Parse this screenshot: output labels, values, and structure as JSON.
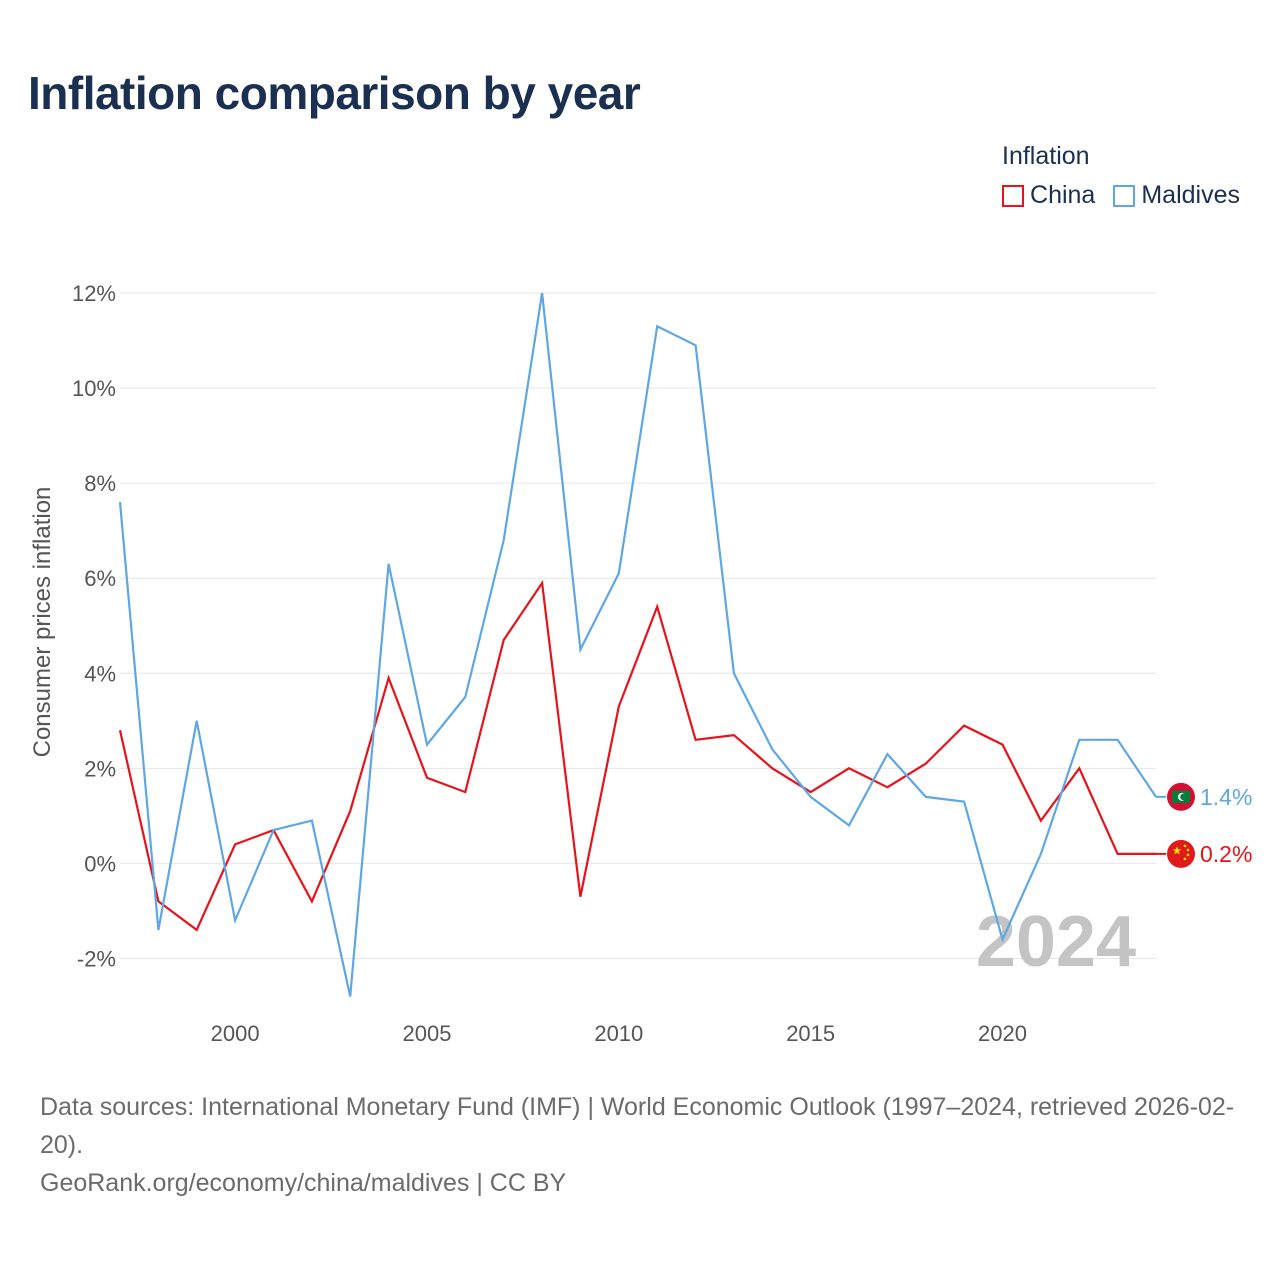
{
  "title": "Inflation comparison by year",
  "legend": {
    "title": "Inflation",
    "items": [
      {
        "label": "China",
        "color": "#e8131a"
      },
      {
        "label": "Maldives",
        "color": "#5fa7e2"
      }
    ]
  },
  "chart_data": {
    "type": "line",
    "ylabel": "Consumer prices inflation",
    "xlabel": "",
    "xlim": [
      1997,
      2024
    ],
    "ylim": [
      -3,
      12
    ],
    "x_ticks": [
      2000,
      2005,
      2010,
      2015,
      2020
    ],
    "y_ticks": [
      -2,
      0,
      2,
      4,
      6,
      8,
      10,
      12
    ],
    "y_tick_labels": [
      "-2%",
      "0%",
      "2%",
      "4%",
      "6%",
      "8%",
      "10%",
      "12%"
    ],
    "x": [
      1997,
      1998,
      1999,
      2000,
      2001,
      2002,
      2003,
      2004,
      2005,
      2006,
      2007,
      2008,
      2009,
      2010,
      2011,
      2012,
      2013,
      2014,
      2015,
      2016,
      2017,
      2018,
      2019,
      2020,
      2021,
      2022,
      2023,
      2024
    ],
    "series": [
      {
        "name": "China",
        "color": "#e8131a",
        "end_label": "0.2%",
        "flag": "china-flag-icon",
        "values": [
          2.8,
          -0.8,
          -1.4,
          0.4,
          0.7,
          -0.8,
          1.1,
          3.9,
          1.8,
          1.5,
          4.7,
          5.9,
          -0.7,
          3.3,
          5.4,
          2.6,
          2.7,
          2.0,
          1.5,
          2.0,
          1.6,
          2.1,
          2.9,
          2.5,
          0.9,
          2.0,
          0.2,
          0.2
        ]
      },
      {
        "name": "Maldives",
        "color": "#5fa7e2",
        "end_label": "1.4%",
        "flag": "maldives-flag-icon",
        "values": [
          7.6,
          -1.4,
          3.0,
          -1.2,
          0.7,
          0.9,
          -2.8,
          6.3,
          2.5,
          3.5,
          6.8,
          12.0,
          4.5,
          6.1,
          11.3,
          10.9,
          4.0,
          2.4,
          1.4,
          0.8,
          2.3,
          1.4,
          1.3,
          -1.6,
          0.2,
          2.6,
          2.6,
          1.4
        ]
      }
    ],
    "watermark_year": "2024",
    "grid": true
  },
  "source": {
    "line1": "Data sources: International Monetary Fund (IMF) | World Economic Outlook (1997–2024, retrieved 2026-02-20).",
    "line2": "GeoRank.org/economy/china/maldives | CC BY"
  }
}
